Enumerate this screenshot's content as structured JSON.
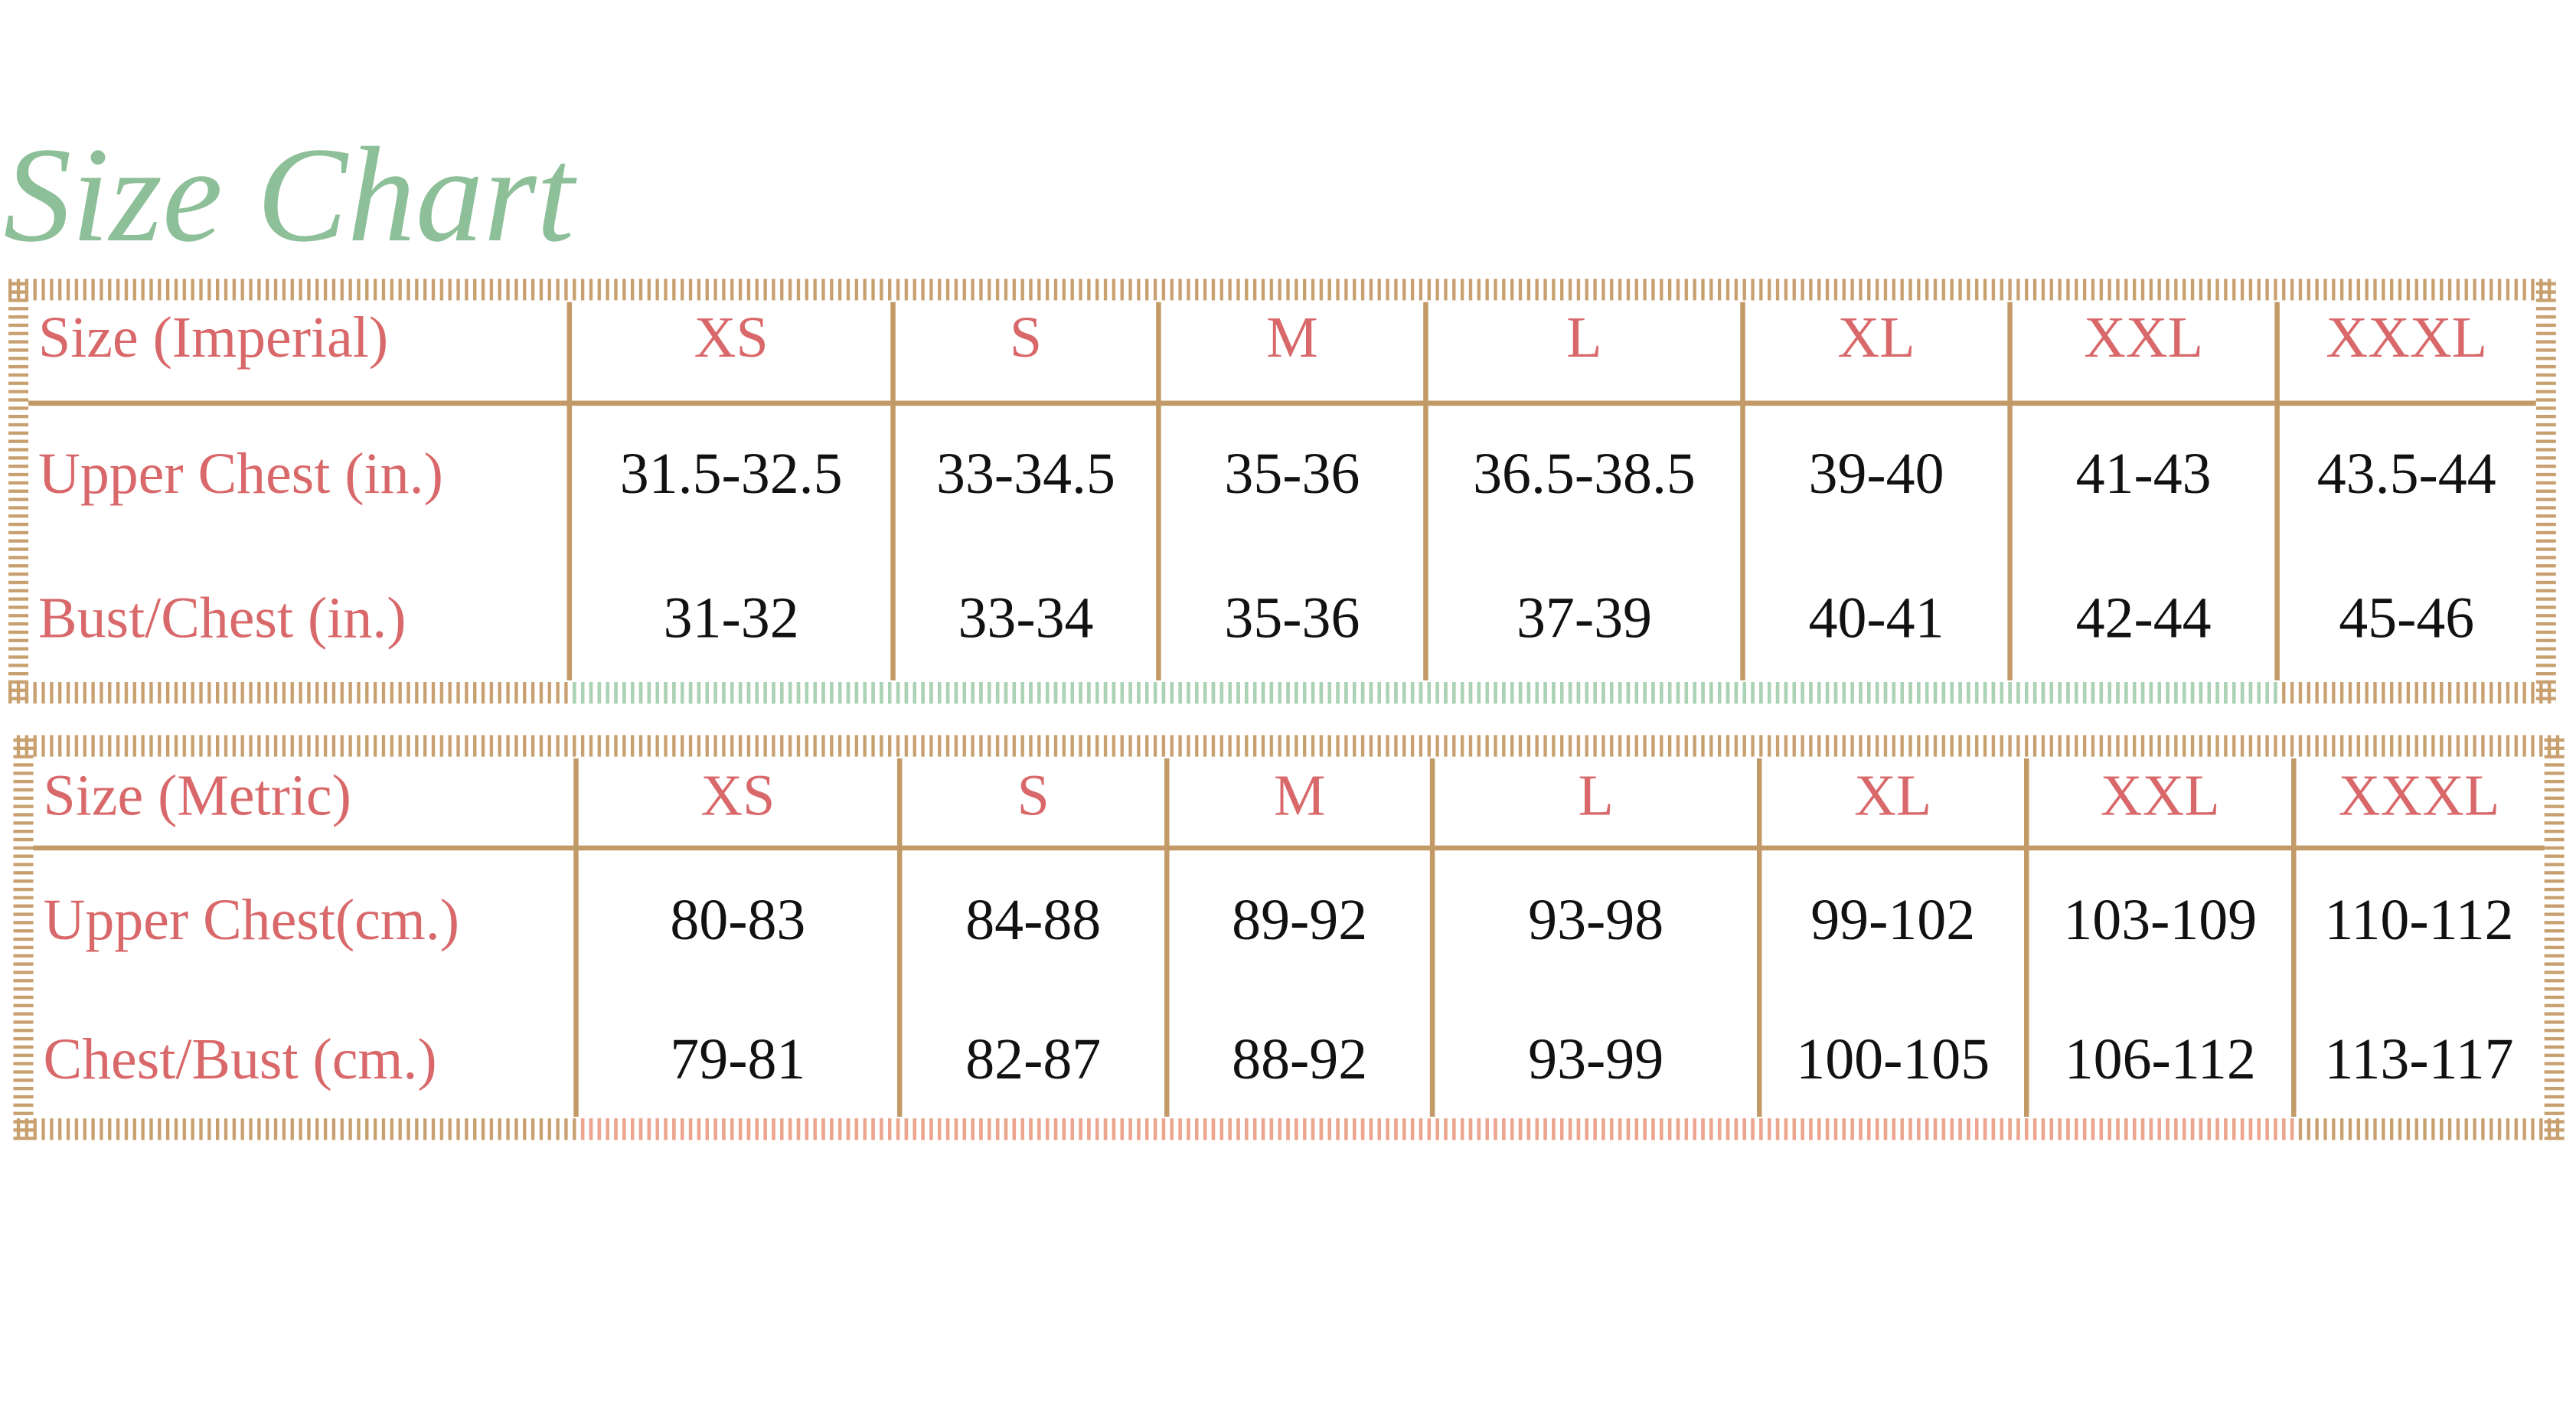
{
  "title": "Size Chart",
  "tables": [
    {
      "header": [
        "Size (Imperial)",
        "XS",
        "S",
        "M",
        "L",
        "XL",
        "XXL",
        "XXXL"
      ],
      "rows": [
        [
          "Upper Chest (in.)",
          "31.5-32.5",
          "33-34.5",
          "35-36",
          "36.5-38.5",
          "39-40",
          "41-43",
          "43.5-44"
        ],
        [
          "Bust/Chest (in.)",
          "31-32",
          "33-34",
          "35-36",
          "37-39",
          "40-41",
          "42-44",
          "45-46"
        ]
      ]
    },
    {
      "header": [
        "Size (Metric)",
        "XS",
        "S",
        "M",
        "L",
        "XL",
        "XXL",
        "XXXL"
      ],
      "rows": [
        [
          "Upper Chest(cm.)",
          "80-83",
          "84-88",
          "89-92",
          "93-98",
          "99-102",
          "103-109",
          "110-112"
        ],
        [
          "Chest/Bust (cm.)",
          "79-81",
          "82-87",
          "88-92",
          "93-99",
          "100-105",
          "106-112",
          "113-117"
        ]
      ]
    }
  ]
}
